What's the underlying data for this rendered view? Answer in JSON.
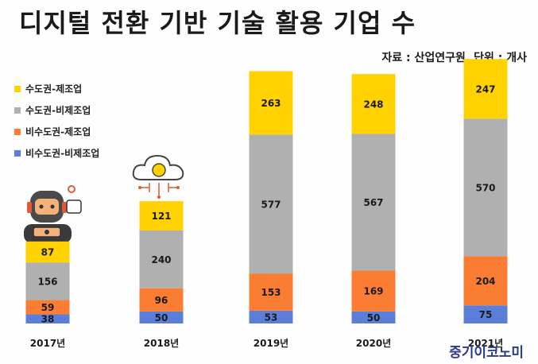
{
  "title": "디지털 전환 기반 기술 활용 기업 수",
  "source": "자료 : 산업연구원, 단위 : 개사",
  "watermark": "중기이코노미",
  "icons": [
    "robot-icon",
    "cloud-brain-icon"
  ],
  "colors": {
    "capital_manufacturing": "#ffd200",
    "capital_nonmanufacturing": "#b0b0b0",
    "noncapital_manufacturing": "#fa7d33",
    "noncapital_nonmanufacturing": "#5b7fd8"
  },
  "chart_data": {
    "type": "bar",
    "stacked": true,
    "categories": [
      "2017년",
      "2018년",
      "2019년",
      "2020년",
      "2021년"
    ],
    "series": [
      {
        "name": "비수도권-비제조업",
        "color": "#5b7fd8",
        "values": [
          38,
          50,
          53,
          50,
          75
        ]
      },
      {
        "name": "비수도권-제조업",
        "color": "#fa7d33",
        "values": [
          59,
          96,
          153,
          169,
          204
        ]
      },
      {
        "name": "수도권-비제조업",
        "color": "#b0b0b0",
        "values": [
          156,
          240,
          577,
          567,
          570
        ]
      },
      {
        "name": "수도권-제조업",
        "color": "#ffd200",
        "values": [
          87,
          121,
          263,
          248,
          247
        ]
      }
    ],
    "legend": [
      "수도권-제조업",
      "수도권-비제조업",
      "비수도권-제조업",
      "비수도권-비제조업"
    ],
    "legend_position": "top-left",
    "grid": false
  }
}
